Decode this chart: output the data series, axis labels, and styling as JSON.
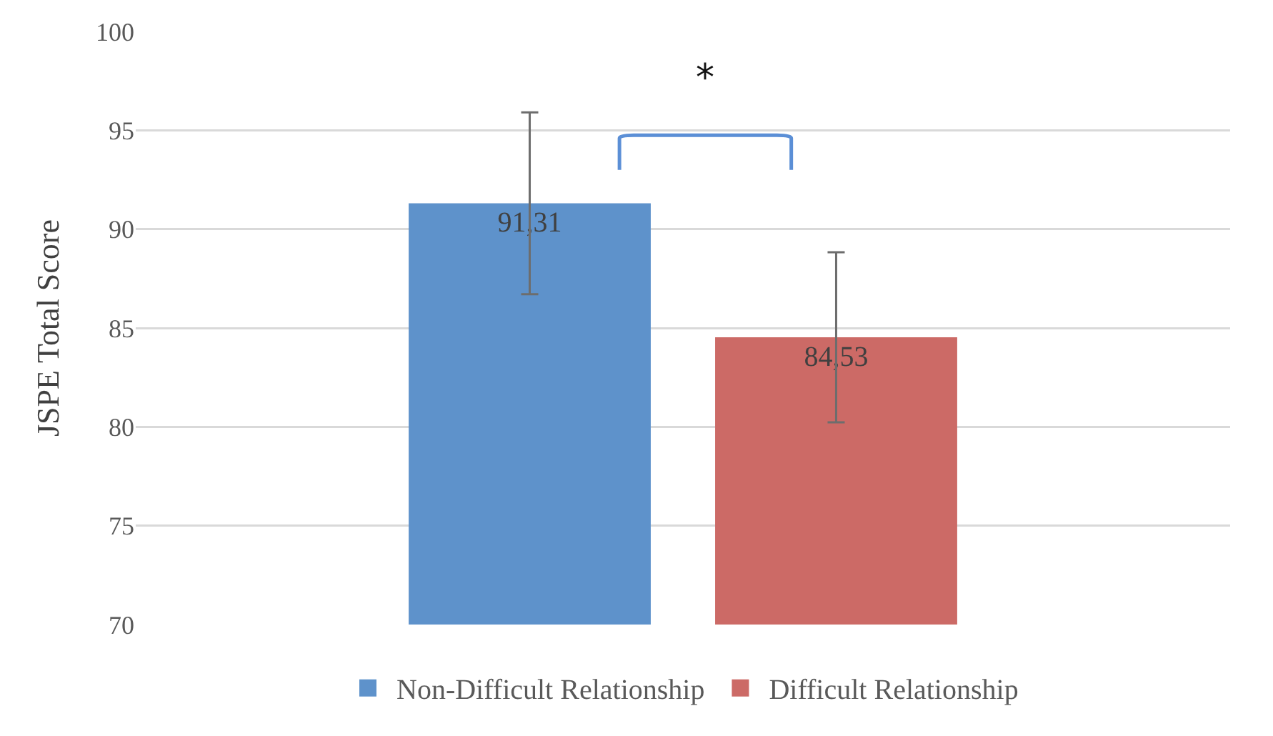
{
  "chart_data": {
    "type": "bar",
    "ylabel": "JSPE Total Score",
    "categories": [
      null
    ],
    "series": [
      {
        "name": "Non-Difficult Relationship",
        "color": "#5e92cb",
        "values": [
          91.31
        ],
        "value_labels": [
          "91,31"
        ],
        "errors": [
          4.6
        ]
      },
      {
        "name": "Difficult Relationship",
        "color": "#cc6a66",
        "values": [
          84.53
        ],
        "value_labels": [
          "84,53"
        ],
        "errors": [
          4.3
        ]
      }
    ],
    "ylim": [
      70,
      100
    ],
    "yticks": [
      70,
      75,
      80,
      85,
      90,
      95,
      100
    ],
    "grid": "y",
    "legend": "bottom",
    "annotations": [
      "*"
    ]
  }
}
